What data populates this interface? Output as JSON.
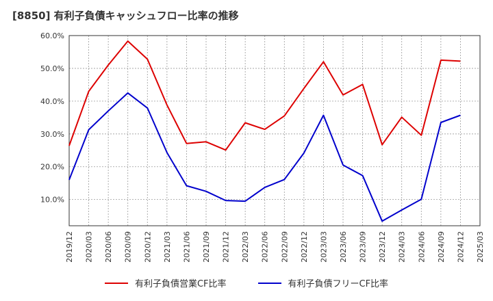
{
  "chart_data": {
    "type": "line",
    "title": "[8850]  有利子負債キャッシュフロー比率の推移",
    "categories": [
      "2019/12",
      "2020/03",
      "2020/06",
      "2020/09",
      "2020/12",
      "2021/03",
      "2021/06",
      "2021/09",
      "2021/12",
      "2022/03",
      "2022/06",
      "2022/09",
      "2022/12",
      "2023/03",
      "2023/06",
      "2023/09",
      "2023/12",
      "2024/03",
      "2024/06",
      "2024/09",
      "2024/12",
      "2025/03"
    ],
    "y_tick_labels": [
      "10.0%",
      "20.0%",
      "30.0%",
      "40.0%",
      "50.0%",
      "60.0%"
    ],
    "y_ticks": [
      10,
      20,
      30,
      40,
      50,
      60
    ],
    "ylim": [
      2,
      60
    ],
    "grid": true,
    "legend_position": "bottom",
    "series": [
      {
        "name": "有利子負債営業CF比率",
        "color": "#dd0000",
        "x": [
          "2019/12",
          "2020/03",
          "2020/06",
          "2020/09",
          "2020/12",
          "2021/03",
          "2021/06",
          "2021/09",
          "2021/12",
          "2022/03",
          "2022/06",
          "2022/09",
          "2022/12",
          "2023/03",
          "2023/06",
          "2023/09",
          "2023/12",
          "2024/03",
          "2024/06",
          "2024/09",
          "2024/12"
        ],
        "values": [
          26.4,
          43.0,
          51.0,
          58.3,
          52.8,
          38.8,
          27.1,
          27.6,
          25.1,
          33.4,
          31.4,
          35.5,
          43.9,
          52.0,
          41.9,
          45.1,
          26.7,
          35.1,
          29.6,
          52.5,
          52.2
        ]
      },
      {
        "name": "有利子負債フリーCF比率",
        "color": "#0000cc",
        "x": [
          "2019/12",
          "2020/03",
          "2020/06",
          "2020/09",
          "2020/12",
          "2021/03",
          "2021/06",
          "2021/09",
          "2021/12",
          "2022/03",
          "2022/06",
          "2022/09",
          "2022/12",
          "2023/03",
          "2023/06",
          "2023/09",
          "2023/12",
          "2024/03",
          "2024/06",
          "2024/09",
          "2024/12"
        ],
        "values": [
          16.0,
          31.3,
          37.0,
          42.5,
          37.9,
          24.3,
          14.2,
          12.5,
          9.7,
          9.5,
          13.7,
          16.1,
          24.2,
          35.7,
          20.5,
          17.3,
          3.4,
          6.8,
          10.1,
          33.5,
          35.7
        ]
      }
    ]
  }
}
